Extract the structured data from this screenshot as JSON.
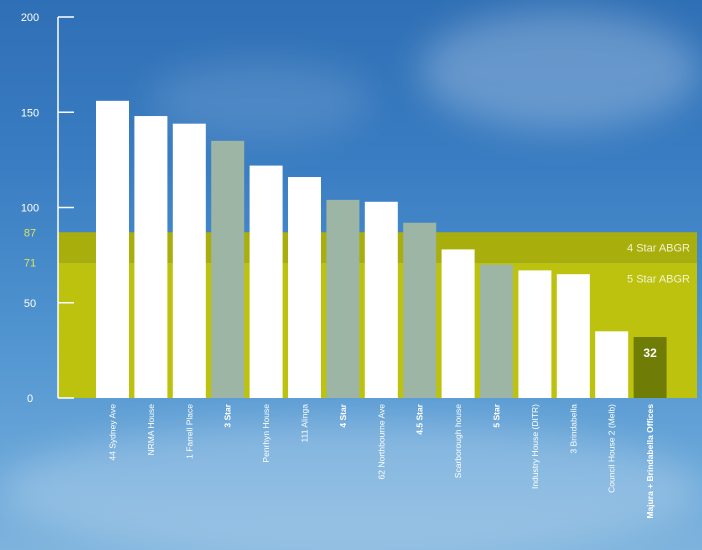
{
  "chart_data": {
    "type": "bar",
    "categories": [
      "44 Sydney Ave",
      "NRMA House",
      "1 Farrell Place",
      "3 Star",
      "Penrhyn House",
      "111 Alinga",
      "4 Star",
      "62 Northbourne Ave",
      "4.5 Star",
      "Scarborough house",
      "5 Star",
      "Industry House (DITR)",
      "3 Brindabella",
      "Council House 2 (Melb)",
      "Majura + Brindabella Offices"
    ],
    "values": [
      156,
      148,
      144,
      135,
      122,
      116,
      104,
      103,
      92,
      78,
      70,
      67,
      65,
      35,
      32
    ],
    "bar_kinds": [
      "building",
      "building",
      "building",
      "benchmark",
      "building",
      "building",
      "benchmark",
      "building",
      "benchmark",
      "building",
      "benchmark",
      "building",
      "building",
      "building",
      "highlight"
    ],
    "bold_labels": [
      false,
      false,
      false,
      true,
      false,
      false,
      true,
      false,
      true,
      false,
      true,
      false,
      false,
      false,
      true
    ],
    "ylim": [
      0,
      200
    ],
    "yticks": [
      "0",
      "50",
      "100",
      "150",
      "200"
    ],
    "bands": [
      {
        "label": "4 Star ABGR",
        "from": 71,
        "to": 87,
        "tick_label": "87"
      },
      {
        "label": "5 Star ABGR",
        "from": 0,
        "to": 71,
        "tick_label": "71"
      }
    ],
    "data_labels": [
      {
        "index": 14,
        "text": "32"
      }
    ],
    "colors": {
      "building": "#ffffff",
      "benchmark": "#9cb5a4",
      "highlight": "#6f7d06",
      "band_4star": "#a8ae0b",
      "band_5star": "#bcc20d",
      "accent_tick": "#d9e35a"
    },
    "xlabel": "",
    "ylabel": "",
    "title": ""
  }
}
